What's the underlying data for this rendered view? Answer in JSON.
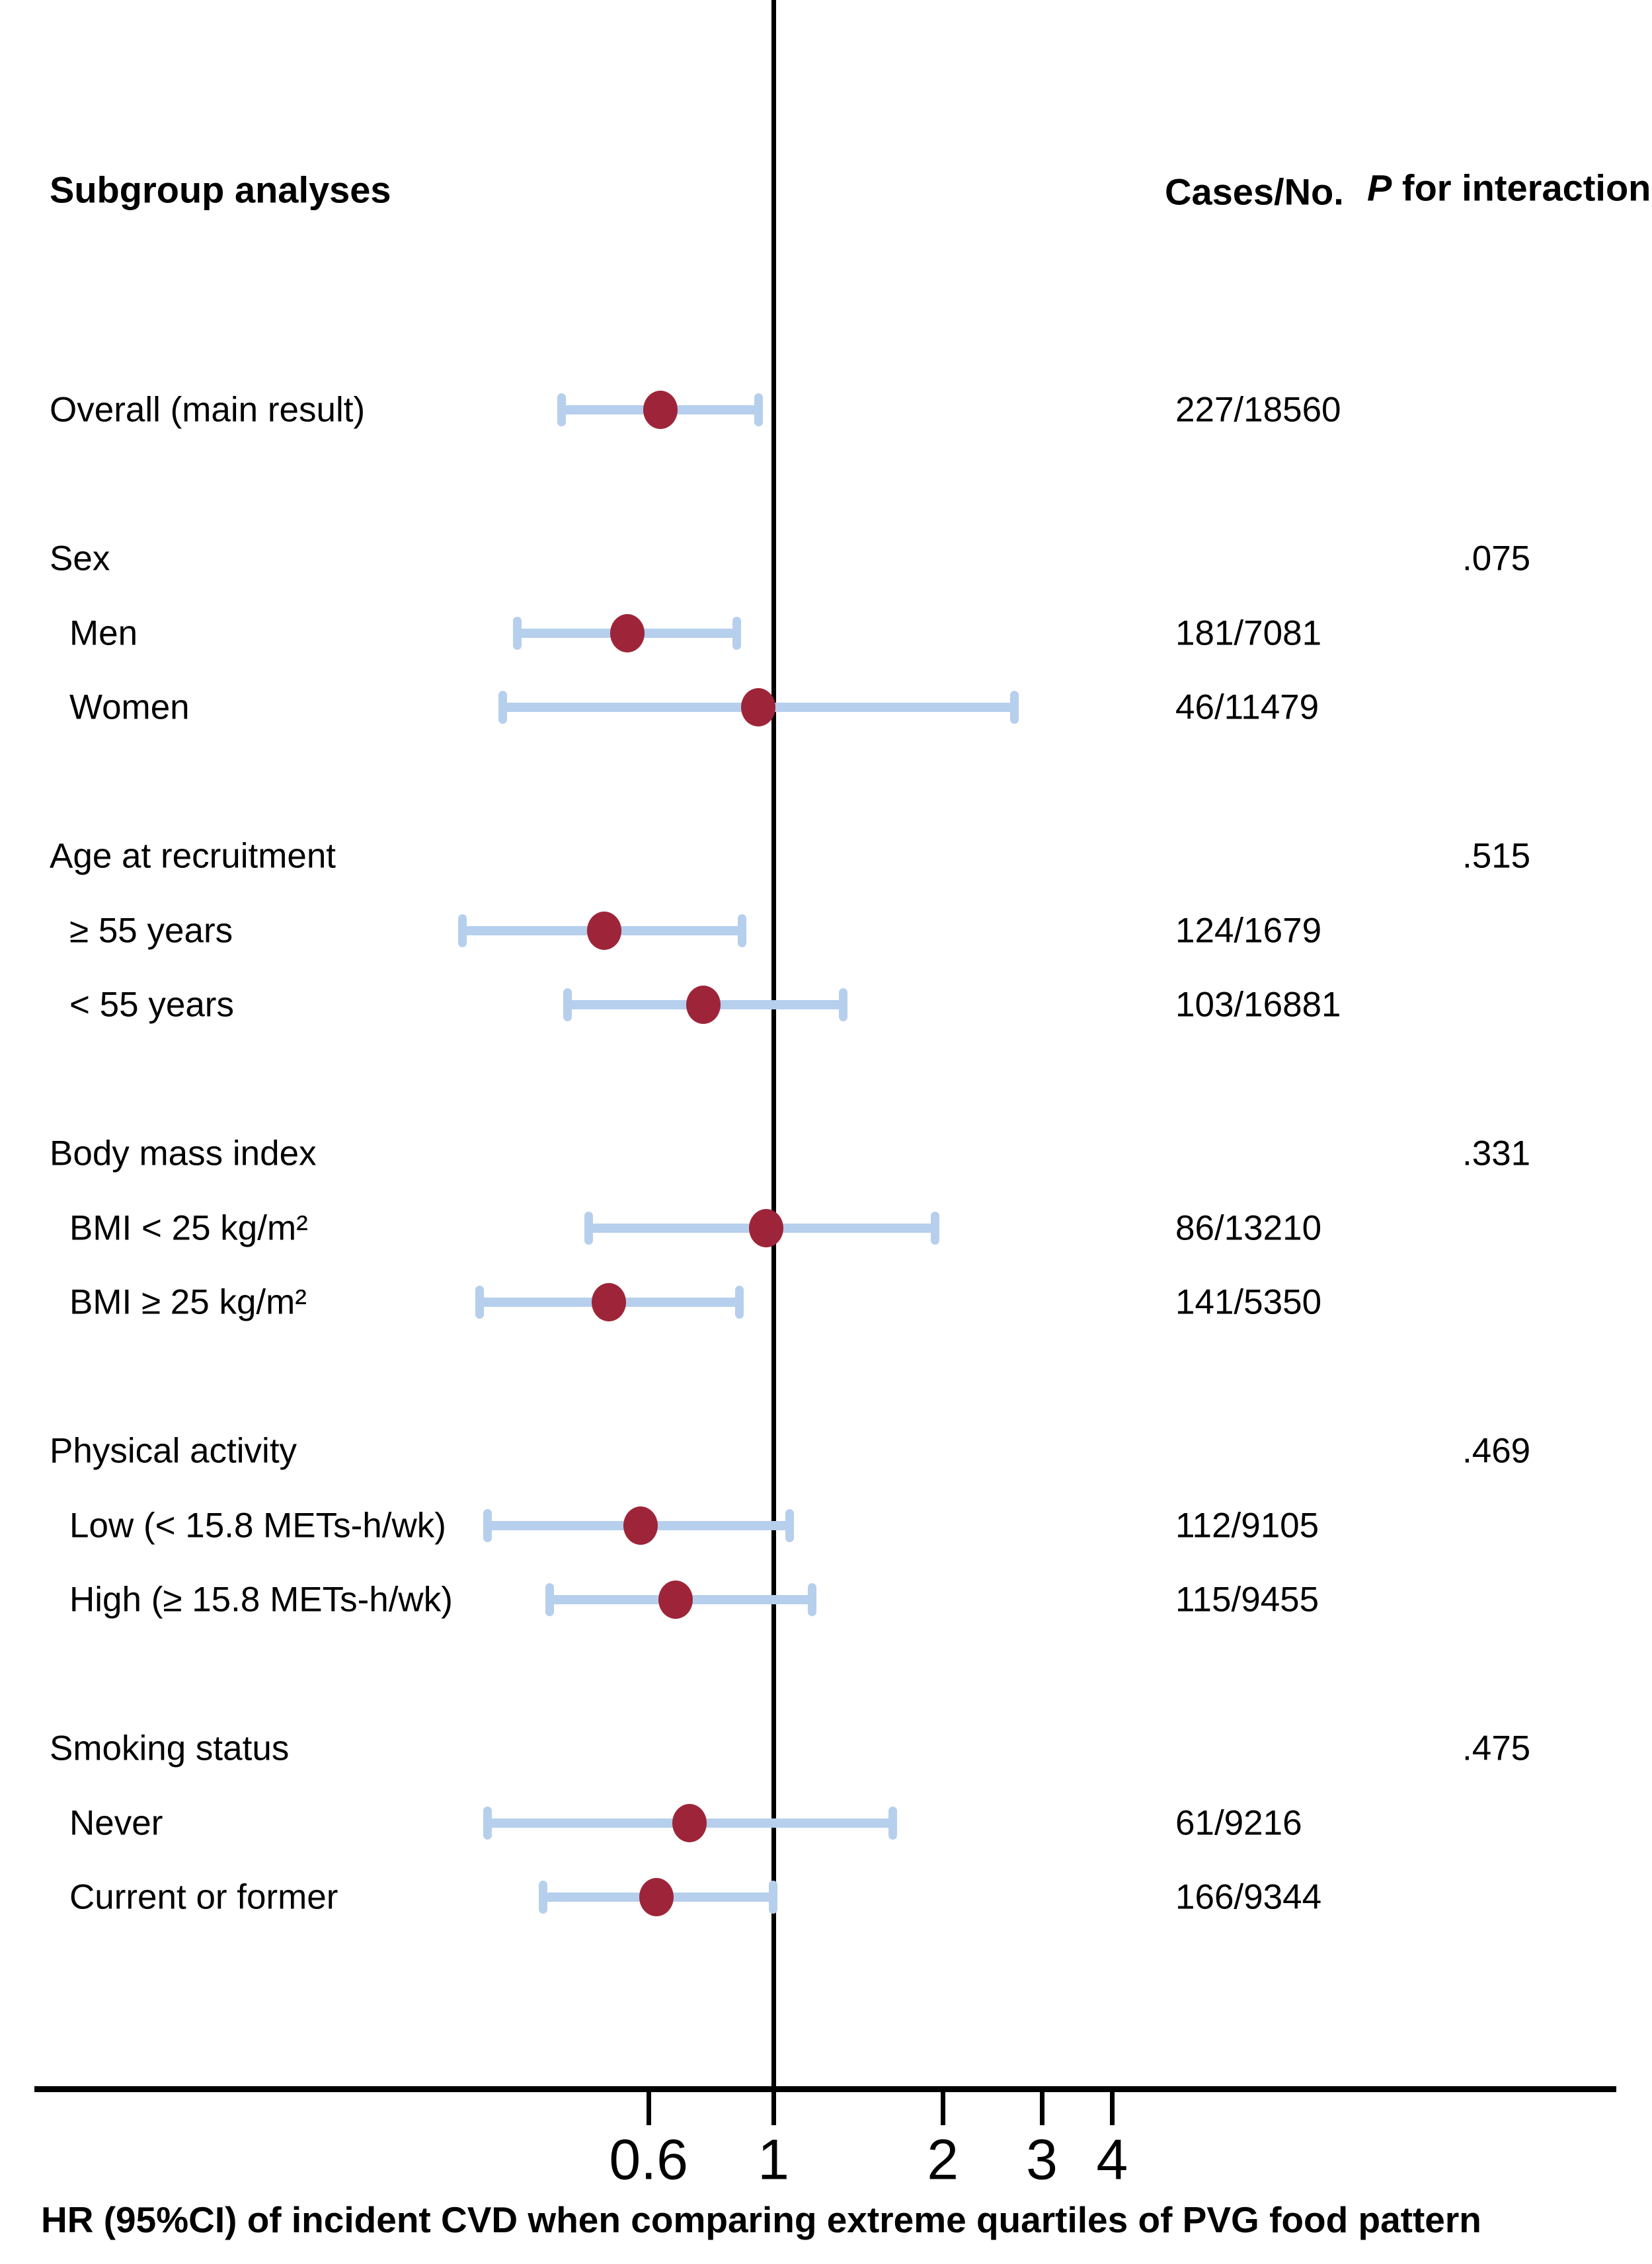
{
  "header": {
    "subgroup_label": "Subgroup analyses",
    "cases_label": "Cases/No.",
    "p_label_italic": "P",
    "p_label_rest": " for interaction"
  },
  "caption": "HR (95%CI) of incident CVD when comparing extreme quartiles of PVG food pattern",
  "chart_data": {
    "type": "forest",
    "x_scale": "log10",
    "x_axis": {
      "tick_values": [
        0.6,
        1,
        2,
        3,
        4
      ],
      "tick_labels": [
        "0.6",
        "1",
        "2",
        "3",
        "4"
      ],
      "reference_value": 1,
      "range": [
        0.25,
        4.6
      ]
    },
    "colors": {
      "marker": "#9E2539",
      "bar": "#B6CFED",
      "line": "#000000"
    },
    "rows": [
      {
        "kind": "item",
        "indent": 0,
        "label": "Overall (main result)",
        "cases": "227/18560",
        "p": "",
        "hr": 0.63,
        "lo": 0.42,
        "hi": 0.94
      },
      {
        "kind": "section",
        "indent": 0,
        "label": "Sex",
        "cases": "",
        "p": ".075"
      },
      {
        "kind": "item",
        "indent": 1,
        "label": "Men",
        "cases": "181/7081",
        "p": "",
        "hr": 0.55,
        "lo": 0.35,
        "hi": 0.86
      },
      {
        "kind": "item",
        "indent": 1,
        "label": "Women",
        "cases": "46/11479",
        "p": "",
        "hr": 0.94,
        "lo": 0.33,
        "hi": 2.68
      },
      {
        "kind": "section",
        "indent": 0,
        "label": "Age at recruitment",
        "cases": "",
        "p": ".515"
      },
      {
        "kind": "item",
        "indent": 1,
        "label": "≥ 55 years",
        "cases": "124/1679",
        "p": "",
        "hr": 0.5,
        "lo": 0.28,
        "hi": 0.88
      },
      {
        "kind": "item",
        "indent": 1,
        "label": "< 55 years",
        "cases": "103/16881",
        "p": "",
        "hr": 0.75,
        "lo": 0.43,
        "hi": 1.33
      },
      {
        "kind": "section",
        "indent": 0,
        "label": "Body mass index",
        "cases": "",
        "p": ".331"
      },
      {
        "kind": "item",
        "indent": 1,
        "label": "BMI < 25 kg/m²",
        "cases": "86/13210",
        "p": "",
        "hr": 0.97,
        "lo": 0.47,
        "hi": 1.94
      },
      {
        "kind": "item",
        "indent": 1,
        "label": "BMI ≥ 25 kg/m²",
        "cases": "141/5350",
        "p": "",
        "hr": 0.51,
        "lo": 0.3,
        "hi": 0.87
      },
      {
        "kind": "section",
        "indent": 0,
        "label": "Physical activity",
        "cases": "",
        "p": ".469"
      },
      {
        "kind": "item",
        "indent": 1,
        "label": "Low (< 15.8 METs-h/wk)",
        "cases": "112/9105",
        "p": "",
        "hr": 0.58,
        "lo": 0.31,
        "hi": 1.07
      },
      {
        "kind": "item",
        "indent": 1,
        "label": "High (≥ 15.8 METs-h/wk)",
        "cases": "115/9455",
        "p": "",
        "hr": 0.67,
        "lo": 0.4,
        "hi": 1.17
      },
      {
        "kind": "section",
        "indent": 0,
        "label": "Smoking status",
        "cases": "",
        "p": ".475"
      },
      {
        "kind": "item",
        "indent": 1,
        "label": "Never",
        "cases": "61/9216",
        "p": "",
        "hr": 0.71,
        "lo": 0.31,
        "hi": 1.63
      },
      {
        "kind": "item",
        "indent": 1,
        "label": "Current or former",
        "cases": "166/9344",
        "p": "",
        "hr": 0.62,
        "lo": 0.39,
        "hi": 1.0
      }
    ]
  }
}
